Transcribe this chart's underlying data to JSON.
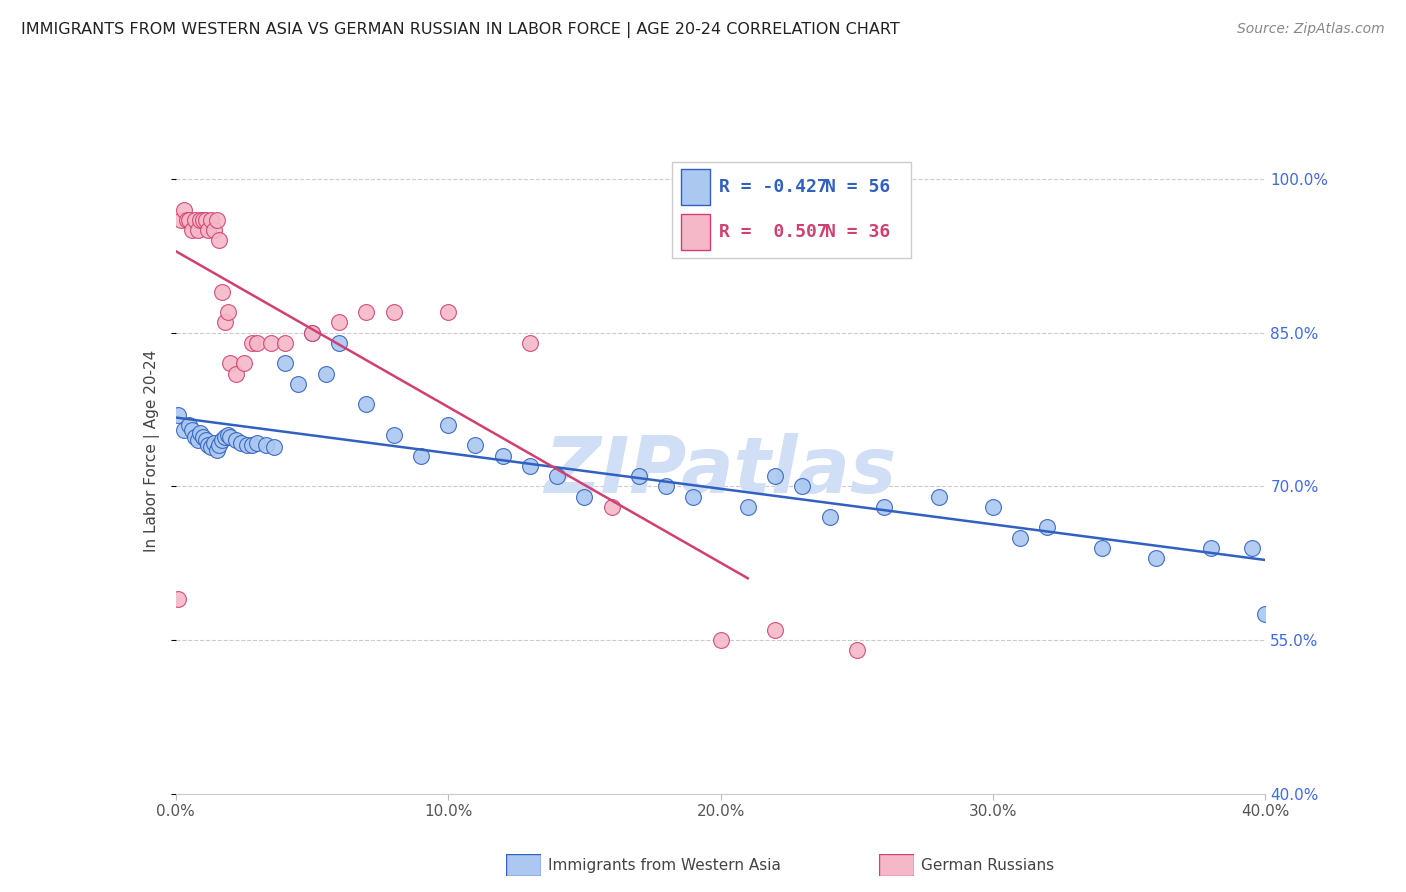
{
  "title": "IMMIGRANTS FROM WESTERN ASIA VS GERMAN RUSSIAN IN LABOR FORCE | AGE 20-24 CORRELATION CHART",
  "source": "Source: ZipAtlas.com",
  "ylabel": "In Labor Force | Age 20-24",
  "x_min": 0.0,
  "x_max": 0.4,
  "y_min": 0.4,
  "y_max": 1.07,
  "x_ticks": [
    0.0,
    0.1,
    0.2,
    0.3,
    0.4
  ],
  "x_tick_labels": [
    "0.0%",
    "10.0%",
    "20.0%",
    "30.0%",
    "40.0%"
  ],
  "y_ticks_right": [
    1.0,
    0.85,
    0.7,
    0.55,
    0.4
  ],
  "y_tick_labels_right": [
    "100.0%",
    "85.0%",
    "70.0%",
    "55.0%",
    "40.0%"
  ],
  "legend_r1": "R = -0.427",
  "legend_n1": "N = 56",
  "legend_r2": "R =  0.507",
  "legend_n2": "N = 36",
  "blue_color": "#aac8f0",
  "pink_color": "#f5b8c8",
  "blue_line_color": "#3060c0",
  "pink_line_color": "#d04070",
  "watermark": "ZIPatlas",
  "watermark_color": "#d0dff5",
  "blue_x": [
    0.001,
    0.003,
    0.005,
    0.006,
    0.007,
    0.008,
    0.009,
    0.01,
    0.011,
    0.012,
    0.013,
    0.014,
    0.015,
    0.016,
    0.017,
    0.018,
    0.019,
    0.02,
    0.022,
    0.024,
    0.026,
    0.028,
    0.03,
    0.033,
    0.036,
    0.04,
    0.045,
    0.05,
    0.055,
    0.06,
    0.07,
    0.08,
    0.09,
    0.1,
    0.11,
    0.12,
    0.13,
    0.14,
    0.15,
    0.17,
    0.18,
    0.19,
    0.21,
    0.22,
    0.23,
    0.24,
    0.26,
    0.28,
    0.3,
    0.31,
    0.32,
    0.34,
    0.36,
    0.38,
    0.395,
    0.4
  ],
  "blue_y": [
    0.77,
    0.755,
    0.76,
    0.755,
    0.748,
    0.745,
    0.752,
    0.748,
    0.745,
    0.74,
    0.738,
    0.742,
    0.735,
    0.74,
    0.745,
    0.748,
    0.75,
    0.748,
    0.745,
    0.742,
    0.74,
    0.74,
    0.742,
    0.74,
    0.738,
    0.82,
    0.8,
    0.85,
    0.81,
    0.84,
    0.78,
    0.75,
    0.73,
    0.76,
    0.74,
    0.73,
    0.72,
    0.71,
    0.69,
    0.71,
    0.7,
    0.69,
    0.68,
    0.71,
    0.7,
    0.67,
    0.68,
    0.69,
    0.68,
    0.65,
    0.66,
    0.64,
    0.63,
    0.64,
    0.64,
    0.575
  ],
  "pink_x": [
    0.001,
    0.002,
    0.003,
    0.004,
    0.005,
    0.006,
    0.007,
    0.008,
    0.009,
    0.01,
    0.011,
    0.012,
    0.013,
    0.014,
    0.015,
    0.016,
    0.017,
    0.018,
    0.019,
    0.02,
    0.022,
    0.025,
    0.028,
    0.03,
    0.035,
    0.04,
    0.05,
    0.06,
    0.07,
    0.08,
    0.1,
    0.13,
    0.16,
    0.2,
    0.22,
    0.25
  ],
  "pink_y": [
    0.59,
    0.96,
    0.97,
    0.96,
    0.96,
    0.95,
    0.96,
    0.95,
    0.96,
    0.96,
    0.96,
    0.95,
    0.96,
    0.95,
    0.96,
    0.94,
    0.89,
    0.86,
    0.87,
    0.82,
    0.81,
    0.82,
    0.84,
    0.84,
    0.84,
    0.84,
    0.85,
    0.86,
    0.87,
    0.87,
    0.87,
    0.84,
    0.68,
    0.55,
    0.56,
    0.54
  ]
}
